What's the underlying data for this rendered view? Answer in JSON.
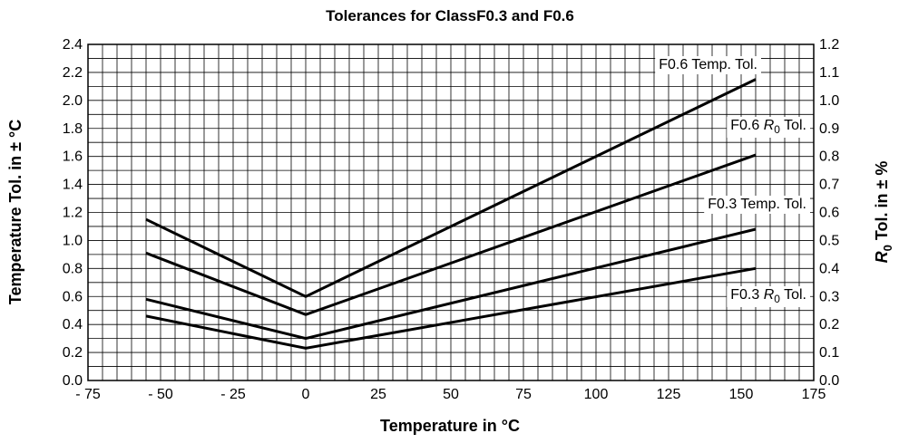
{
  "chart_data": {
    "type": "line",
    "title": "Tolerances for ClassF0.3 and F0.6",
    "xlabel": "Temperature in °C",
    "ylabel_left": "Temperature Tol. in ± °C",
    "ylabel_right_main": "R",
    "ylabel_right_sub": "0",
    "ylabel_right_rest": " Tol. in ± %",
    "xlim": [
      -75,
      175
    ],
    "ylim_left": [
      0,
      2.4
    ],
    "ylim_right": [
      0,
      1.2
    ],
    "x_ticks": [
      "- 75",
      "- 50",
      "- 25",
      "0",
      "25",
      "50",
      "75",
      "100",
      "125",
      "150",
      "175"
    ],
    "x_tick_values": [
      -75,
      -50,
      -25,
      0,
      25,
      50,
      75,
      100,
      125,
      150,
      175
    ],
    "y_left_ticks": [
      "0.0",
      "0.2",
      "0.4",
      "0.6",
      "0.8",
      "1.0",
      "1.2",
      "1.4",
      "1.6",
      "1.8",
      "2.0",
      "2.2",
      "2.4"
    ],
    "y_left_tick_values": [
      0,
      0.2,
      0.4,
      0.6,
      0.8,
      1.0,
      1.2,
      1.4,
      1.6,
      1.8,
      2.0,
      2.2,
      2.4
    ],
    "y_right_ticks": [
      "0.0",
      "0.1",
      "0.2",
      "0.3",
      "0.4",
      "0.5",
      "0.6",
      "0.7",
      "0.8",
      "0.9",
      "1.0",
      "1.1",
      "1.2"
    ],
    "grid": true,
    "series": [
      {
        "name": "F0.6 Temp. Tol.",
        "name_main": "F0.6 Temp. Tol.",
        "name_sub": "",
        "name_rest": "",
        "x": [
          -55,
          0,
          155
        ],
        "y": [
          1.15,
          0.6,
          2.15
        ]
      },
      {
        "name": "F0.6 R0 Tol.",
        "name_main": "F0.6 R",
        "name_sub": "0",
        "name_rest": " Tol.",
        "x": [
          -55,
          0,
          155
        ],
        "y": [
          0.91,
          0.47,
          1.61
        ]
      },
      {
        "name": "F0.3 Temp. Tol.",
        "name_main": "F0.3 Temp. Tol.",
        "name_sub": "",
        "name_rest": "",
        "x": [
          -55,
          0,
          155
        ],
        "y": [
          0.58,
          0.3,
          1.08
        ]
      },
      {
        "name": "F0.3 R0 Tol.",
        "name_main": "F0.3 R",
        "name_sub": "0",
        "name_rest": " Tol.",
        "x": [
          -55,
          0,
          155
        ],
        "y": [
          0.46,
          0.23,
          0.8
        ]
      }
    ]
  }
}
